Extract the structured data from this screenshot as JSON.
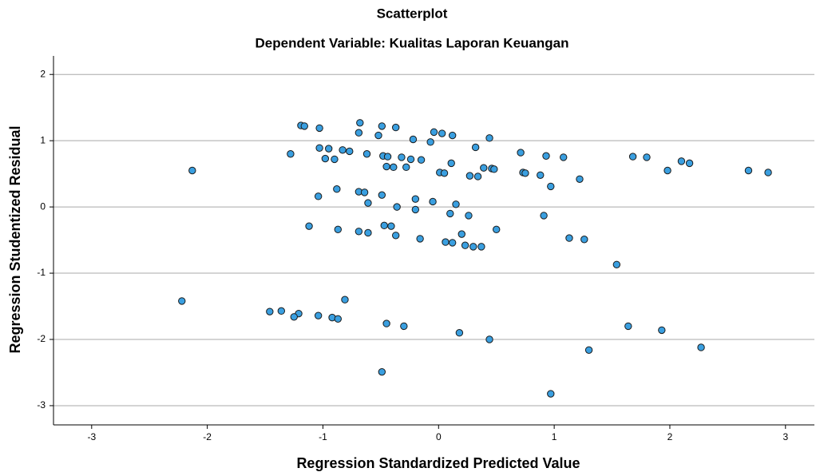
{
  "chart_data": {
    "type": "scatter",
    "title": "Scatterplot",
    "subtitle": "Dependent Variable: Kualitas Laporan Keuangan",
    "x_label": "Regression Standardized Predicted Value",
    "y_label": "Regression Studentized Residual",
    "color": "#3a9fe0",
    "edge_color": "#1a1a1a",
    "grid": true,
    "xlim": [
      -3.33,
      3.25
    ],
    "ylim": [
      -3.29,
      2.28
    ],
    "xticks": [
      -3,
      -2,
      -1,
      0,
      1,
      2,
      3
    ],
    "yticks": [
      -3,
      -2,
      -1,
      0,
      1,
      2
    ],
    "x": [
      -2.13,
      -2.22,
      -1.19,
      -1.16,
      -1.03,
      -1.28,
      -1.03,
      -0.95,
      -0.98,
      -0.9,
      -0.83,
      -0.77,
      -0.68,
      -0.69,
      -0.49,
      -0.37,
      -0.52,
      -0.62,
      -0.48,
      -0.44,
      -0.32,
      -0.24,
      -0.15,
      -0.45,
      -0.39,
      -0.28,
      -0.22,
      -0.04,
      0.03,
      0.12,
      -0.07,
      0.01,
      0.05,
      0.11,
      0.27,
      0.34,
      0.32,
      0.39,
      0.46,
      0.48,
      0.44,
      0.71,
      0.73,
      0.75,
      0.88,
      0.93,
      1.08,
      0.97,
      1.22,
      1.68,
      1.8,
      1.98,
      2.1,
      2.17,
      2.68,
      2.85,
      -1.04,
      -0.88,
      -0.69,
      -0.64,
      -0.61,
      -0.49,
      -0.36,
      -0.2,
      -0.2,
      -0.05,
      0.15,
      0.1,
      0.26,
      0.91,
      -1.12,
      -0.87,
      -0.69,
      -0.61,
      -0.47,
      -0.41,
      -0.37,
      -0.16,
      0.2,
      0.5,
      0.06,
      0.12,
      0.23,
      0.3,
      0.37,
      1.13,
      1.26,
      1.54,
      -1.46,
      -1.36,
      -1.21,
      -1.25,
      -1.04,
      -0.92,
      -0.87,
      -0.81,
      -0.45,
      -0.3,
      0.18,
      0.44,
      -0.49,
      0.97,
      1.3,
      1.64,
      1.93,
      2.27
    ],
    "values": [
      0.55,
      -1.42,
      1.23,
      1.22,
      1.19,
      0.8,
      0.89,
      0.88,
      0.73,
      0.72,
      0.86,
      0.84,
      1.27,
      1.12,
      1.22,
      1.2,
      1.08,
      0.8,
      0.77,
      0.76,
      0.75,
      0.72,
      0.71,
      0.61,
      0.6,
      0.6,
      1.02,
      1.13,
      1.11,
      1.08,
      0.98,
      0.52,
      0.51,
      0.66,
      0.47,
      0.46,
      0.9,
      0.59,
      0.58,
      0.57,
      1.04,
      0.82,
      0.52,
      0.51,
      0.48,
      0.77,
      0.75,
      0.31,
      0.42,
      0.76,
      0.75,
      0.55,
      0.69,
      0.66,
      0.55,
      0.52,
      0.16,
      0.27,
      0.23,
      0.22,
      0.06,
      0.18,
      0.0,
      0.12,
      -0.04,
      0.08,
      0.04,
      -0.1,
      -0.13,
      -0.13,
      -0.29,
      -0.34,
      -0.37,
      -0.39,
      -0.28,
      -0.29,
      -0.43,
      -0.48,
      -0.41,
      -0.34,
      -0.53,
      -0.54,
      -0.58,
      -0.6,
      -0.6,
      -0.47,
      -0.49,
      -0.87,
      -1.58,
      -1.57,
      -1.61,
      -1.66,
      -1.64,
      -1.67,
      -1.69,
      -1.4,
      -1.76,
      -1.8,
      -1.9,
      -2.0,
      -2.49,
      -2.82,
      -2.16,
      -1.8,
      -1.86,
      -2.12
    ]
  }
}
